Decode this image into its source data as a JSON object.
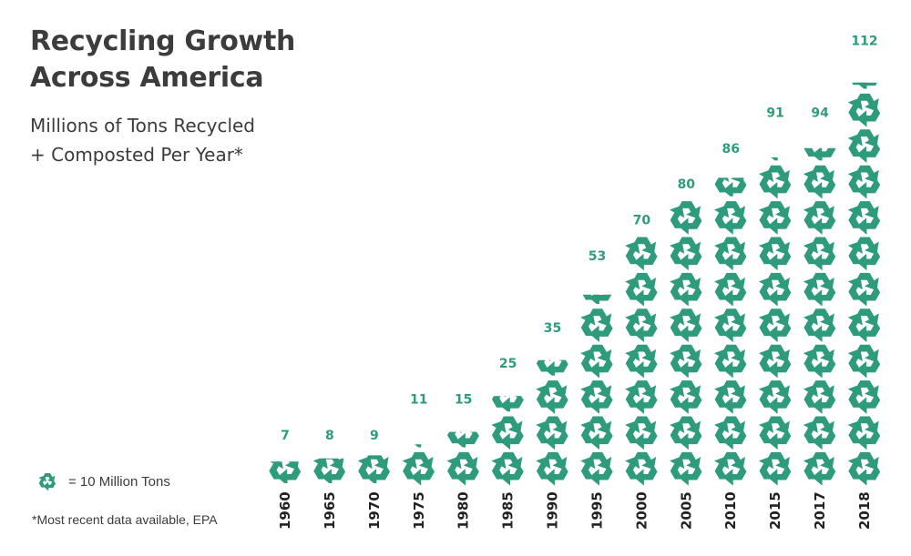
{
  "title_line1": "Recycling Growth",
  "title_line2": "Across America",
  "subtitle_line1": "Millions of Tons Recycled",
  "subtitle_line2": "+ Composted Per Year*",
  "legend_label": "= 10 Million Tons",
  "legend_icon": "recycle-icon",
  "footnote": "*Most recent data available, EPA",
  "colors": {
    "accent": "#2e9c7c",
    "text": "#3c3c3c",
    "axis_label": "#222222"
  },
  "chart_data": {
    "type": "bar",
    "style": "pictograph",
    "unit_per_icon": 10,
    "categories": [
      "1960",
      "1965",
      "1970",
      "1975",
      "1980",
      "1985",
      "1990",
      "1995",
      "2000",
      "2005",
      "2010",
      "2015",
      "2017",
      "2018"
    ],
    "values": [
      7,
      8,
      9,
      11,
      15,
      25,
      35,
      53,
      70,
      80,
      86,
      91,
      94,
      112
    ],
    "value_labels": [
      "7",
      "8",
      "9",
      "11",
      "15",
      "25",
      "35",
      "53",
      "70",
      "80",
      "86",
      "91",
      "94",
      "112"
    ],
    "title": "Recycling Growth Across America",
    "subtitle": "Millions of Tons Recycled + Composted Per Year*",
    "xlabel": "",
    "ylabel": ""
  }
}
